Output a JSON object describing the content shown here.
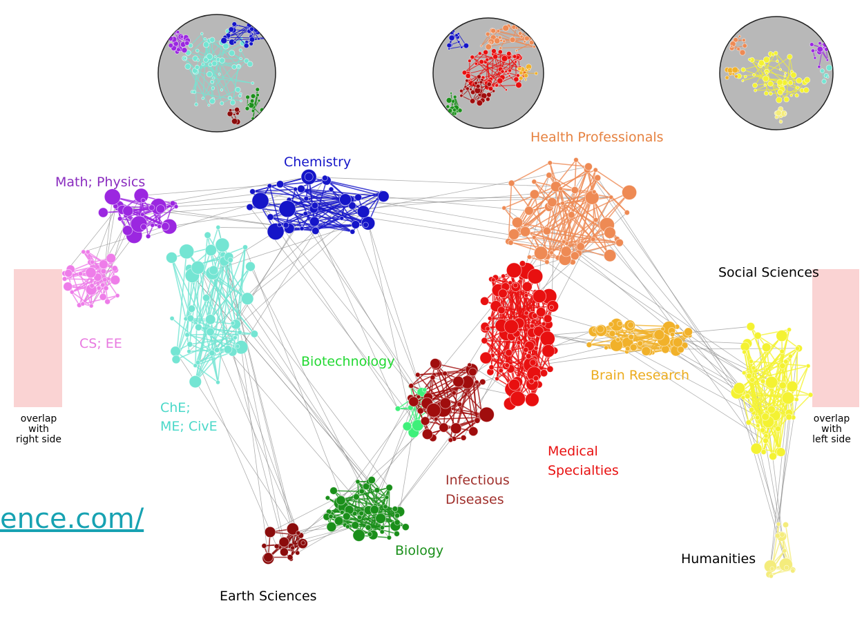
{
  "link_text": "ence.com/",
  "colors": {
    "math_physics": "#9b27e0",
    "cs_ee": "#ee7de9",
    "che_me_cive": "#74e5d3",
    "chemistry": "#1515c8",
    "biotechnology": "#3ef07a",
    "biology": "#1a8f1a",
    "earth_sciences": "#8b0c0c",
    "infectious_diseases": "#a00d0d",
    "medical_specialties": "#e81010",
    "health_professionals": "#ee8a54",
    "brain_research": "#f1b12a",
    "social_sciences": "#f4f232",
    "humanities": "#f4ec7c",
    "link_color": "#17a2b2",
    "overlap_box": "#f8c4c4",
    "globe_fill": "#b8b8b8"
  },
  "labels": {
    "math_physics": "Math; Physics",
    "chemistry": "Chemistry",
    "health_professionals": "Health Professionals",
    "social_sciences": "Social Sciences",
    "cs_ee": "CS; EE",
    "biotechnology": "Biotechnology",
    "brain_research": "Brain Research",
    "che": "ChE;",
    "me_cive": "ME; CivE",
    "medical": "Medical",
    "specialties": "Specialties",
    "infectious": "Infectious",
    "diseases": "Diseases",
    "biology": "Biology",
    "humanities": "Humanities",
    "earth_sciences": "Earth Sciences",
    "overlap_left": [
      "overlap",
      "with",
      "right side"
    ],
    "overlap_right": [
      "overlap",
      "with",
      "left side"
    ]
  }
}
